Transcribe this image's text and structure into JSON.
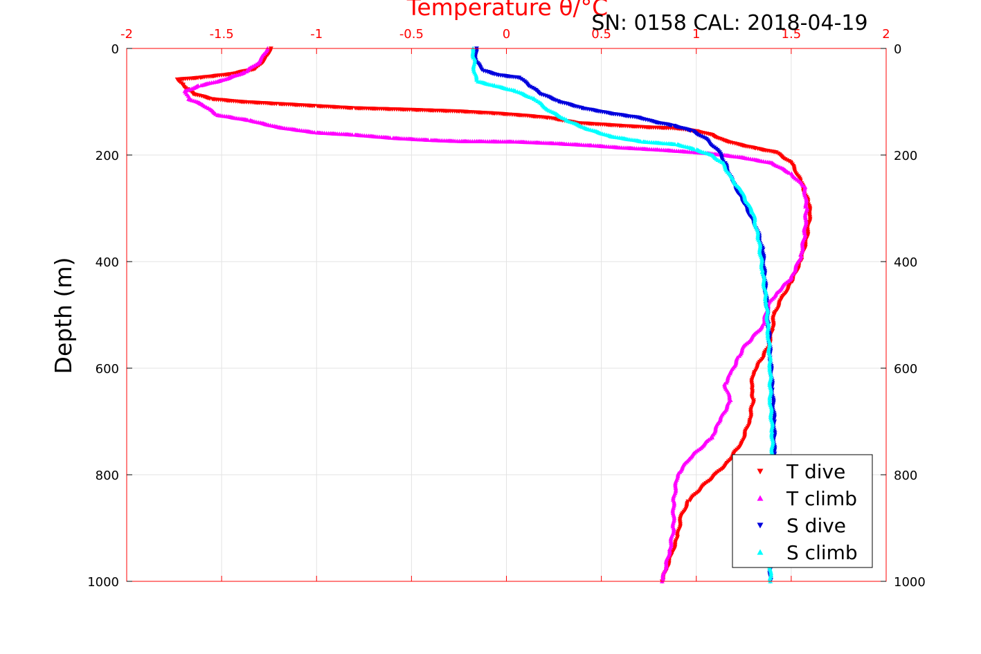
{
  "chart_data": {
    "type": "scatter",
    "title": "SN: 0158  CAL: 2018-04-19",
    "xlabel": "Temperature θ/°C",
    "ylabel": "Depth (m)",
    "xlim": [
      -2,
      2
    ],
    "ylim": [
      0,
      1000
    ],
    "y_reversed": true,
    "x_axis_position": "top",
    "y_ticks_mirrored": "right",
    "x_ticks": [
      "-2",
      "-1.5",
      "-1",
      "-0.5",
      "0",
      "0.5",
      "1",
      "1.5",
      "2"
    ],
    "y_ticks": [
      "0",
      "200",
      "400",
      "600",
      "800",
      "1000"
    ],
    "grid": true,
    "legend_position": "bottom-right",
    "series": [
      {
        "name": "T dive",
        "color": "#ff0000",
        "marker": "triangle-down",
        "points": [
          [
            -1.24,
            0
          ],
          [
            -1.27,
            20
          ],
          [
            -1.32,
            38
          ],
          [
            -1.45,
            48
          ],
          [
            -1.62,
            55
          ],
          [
            -1.73,
            58
          ],
          [
            -1.7,
            70
          ],
          [
            -1.65,
            85
          ],
          [
            -1.55,
            95
          ],
          [
            -1.4,
            100
          ],
          [
            -1.2,
            104
          ],
          [
            -1.0,
            108
          ],
          [
            -0.8,
            112
          ],
          [
            -0.5,
            115
          ],
          [
            -0.25,
            118
          ],
          [
            -0.05,
            122
          ],
          [
            0.1,
            126
          ],
          [
            0.22,
            130
          ],
          [
            0.3,
            135
          ],
          [
            0.38,
            140
          ],
          [
            0.48,
            142
          ],
          [
            0.6,
            145
          ],
          [
            0.75,
            148
          ],
          [
            0.9,
            150
          ],
          [
            1.0,
            155
          ],
          [
            1.08,
            162
          ],
          [
            1.14,
            172
          ],
          [
            1.22,
            180
          ],
          [
            1.32,
            188
          ],
          [
            1.42,
            195
          ],
          [
            1.5,
            215
          ],
          [
            1.55,
            250
          ],
          [
            1.59,
            290
          ],
          [
            1.6,
            310
          ],
          [
            1.58,
            360
          ],
          [
            1.55,
            400
          ],
          [
            1.5,
            440
          ],
          [
            1.45,
            470
          ],
          [
            1.41,
            500
          ],
          [
            1.4,
            530
          ],
          [
            1.38,
            560
          ],
          [
            1.35,
            580
          ],
          [
            1.3,
            610
          ],
          [
            1.29,
            640
          ],
          [
            1.3,
            660
          ],
          [
            1.28,
            700
          ],
          [
            1.24,
            740
          ],
          [
            1.16,
            780
          ],
          [
            1.1,
            800
          ],
          [
            1.04,
            820
          ],
          [
            0.96,
            850
          ],
          [
            0.92,
            880
          ],
          [
            0.9,
            920
          ],
          [
            0.87,
            950
          ],
          [
            0.84,
            980
          ],
          [
            0.82,
            1000
          ]
        ]
      },
      {
        "name": "T climb",
        "color": "#ff00ff",
        "marker": "triangle-up",
        "points": [
          [
            -1.26,
            0
          ],
          [
            -1.3,
            25
          ],
          [
            -1.38,
            45
          ],
          [
            -1.5,
            60
          ],
          [
            -1.62,
            70
          ],
          [
            -1.69,
            80
          ],
          [
            -1.67,
            95
          ],
          [
            -1.6,
            105
          ],
          [
            -1.52,
            125
          ],
          [
            -1.35,
            135
          ],
          [
            -1.2,
            148
          ],
          [
            -1.0,
            158
          ],
          [
            -0.8,
            162
          ],
          [
            -0.6,
            168
          ],
          [
            -0.4,
            172
          ],
          [
            -0.25,
            174
          ],
          [
            0.05,
            175
          ],
          [
            0.25,
            178
          ],
          [
            0.45,
            182
          ],
          [
            0.6,
            186
          ],
          [
            0.8,
            190
          ],
          [
            1.0,
            195
          ],
          [
            1.1,
            198
          ],
          [
            1.25,
            205
          ],
          [
            1.4,
            215
          ],
          [
            1.5,
            235
          ],
          [
            1.57,
            260
          ],
          [
            1.58,
            300
          ],
          [
            1.57,
            350
          ],
          [
            1.55,
            390
          ],
          [
            1.5,
            430
          ],
          [
            1.42,
            460
          ],
          [
            1.38,
            480
          ],
          [
            1.35,
            520
          ],
          [
            1.3,
            540
          ],
          [
            1.25,
            560
          ],
          [
            1.22,
            580
          ],
          [
            1.18,
            610
          ],
          [
            1.15,
            630
          ],
          [
            1.18,
            660
          ],
          [
            1.12,
            700
          ],
          [
            1.08,
            730
          ],
          [
            1.02,
            750
          ],
          [
            0.96,
            770
          ],
          [
            0.9,
            800
          ],
          [
            0.88,
            850
          ],
          [
            0.88,
            900
          ],
          [
            0.86,
            940
          ],
          [
            0.82,
            1000
          ]
        ]
      },
      {
        "name": "S dive",
        "color": "#0000dd",
        "marker": "triangle-down",
        "points": [
          [
            -0.16,
            0
          ],
          [
            -0.16,
            25
          ],
          [
            -0.12,
            42
          ],
          [
            -0.04,
            50
          ],
          [
            0.07,
            55
          ],
          [
            0.12,
            70
          ],
          [
            0.18,
            85
          ],
          [
            0.28,
            100
          ],
          [
            0.4,
            112
          ],
          [
            0.55,
            122
          ],
          [
            0.7,
            130
          ],
          [
            0.78,
            138
          ],
          [
            0.88,
            145
          ],
          [
            0.98,
            155
          ],
          [
            1.05,
            170
          ],
          [
            1.12,
            195
          ],
          [
            1.15,
            215
          ],
          [
            1.19,
            250
          ],
          [
            1.25,
            290
          ],
          [
            1.32,
            340
          ],
          [
            1.35,
            380
          ],
          [
            1.36,
            430
          ],
          [
            1.37,
            480
          ],
          [
            1.38,
            520
          ],
          [
            1.39,
            580
          ],
          [
            1.4,
            640
          ],
          [
            1.41,
            700
          ],
          [
            1.41,
            760
          ],
          [
            1.4,
            820
          ],
          [
            1.39,
            880
          ],
          [
            1.39,
            940
          ],
          [
            1.39,
            1000
          ]
        ]
      },
      {
        "name": "S climb",
        "color": "#00ffff",
        "marker": "triangle-up",
        "points": [
          [
            -0.18,
            0
          ],
          [
            -0.17,
            20
          ],
          [
            -0.17,
            45
          ],
          [
            -0.15,
            62
          ],
          [
            -0.06,
            70
          ],
          [
            0.05,
            80
          ],
          [
            0.15,
            95
          ],
          [
            0.22,
            115
          ],
          [
            0.32,
            135
          ],
          [
            0.42,
            150
          ],
          [
            0.55,
            165
          ],
          [
            0.72,
            175
          ],
          [
            0.9,
            180
          ],
          [
            1.0,
            190
          ],
          [
            1.08,
            200
          ],
          [
            1.14,
            215
          ],
          [
            1.18,
            240
          ],
          [
            1.24,
            270
          ],
          [
            1.3,
            310
          ],
          [
            1.33,
            360
          ],
          [
            1.35,
            420
          ],
          [
            1.37,
            480
          ],
          [
            1.38,
            540
          ],
          [
            1.39,
            600
          ],
          [
            1.39,
            660
          ],
          [
            1.4,
            720
          ],
          [
            1.4,
            780
          ],
          [
            1.39,
            840
          ],
          [
            1.39,
            900
          ],
          [
            1.39,
            960
          ],
          [
            1.39,
            1000
          ]
        ]
      }
    ]
  }
}
